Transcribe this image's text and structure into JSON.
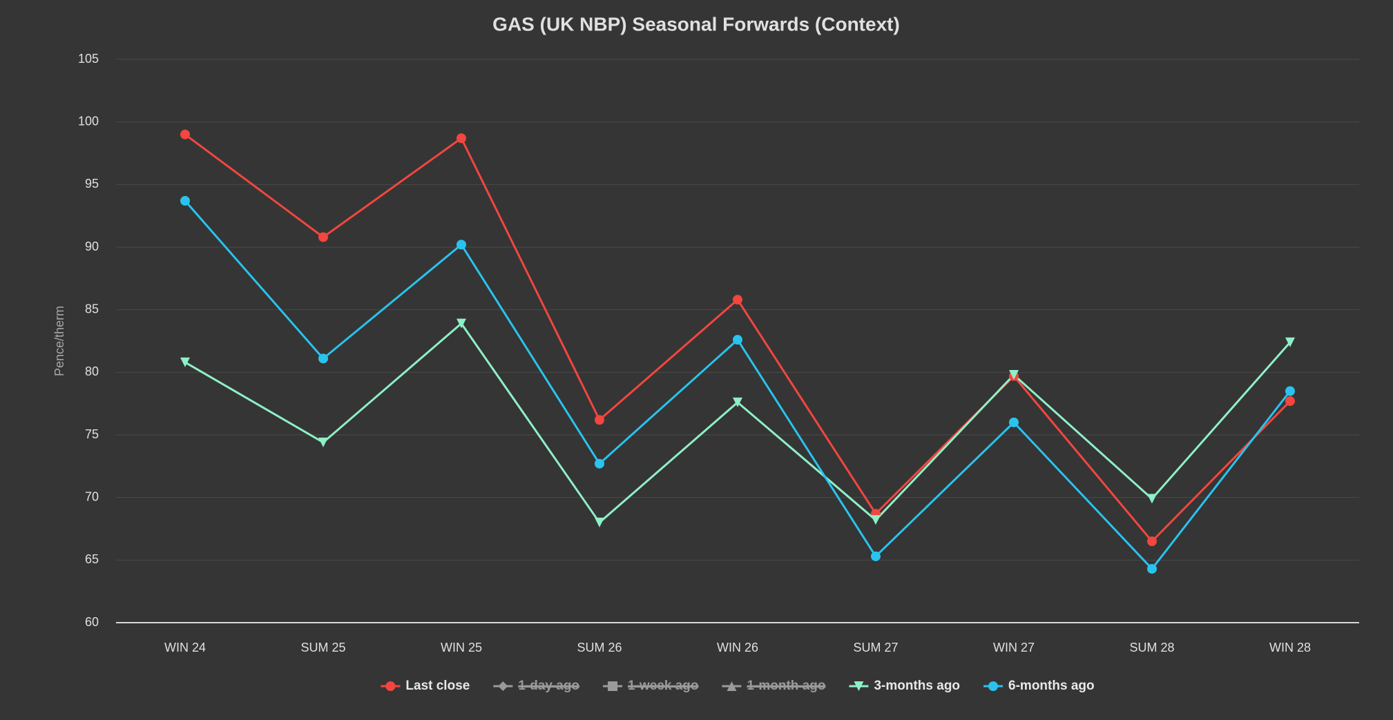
{
  "chart_data": {
    "type": "line",
    "title": "GAS (UK NBP) Seasonal Forwards (Context)",
    "y_label": "Pence/therm",
    "categories": [
      "WIN 24",
      "SUM 25",
      "WIN 25",
      "SUM 26",
      "WIN 26",
      "SUM 27",
      "WIN 27",
      "SUM 28",
      "WIN 28"
    ],
    "ylim": [
      60,
      105
    ],
    "yticks": [
      60,
      65,
      70,
      75,
      80,
      85,
      90,
      95,
      100,
      105
    ],
    "grid": true,
    "legend": "bottom",
    "series": [
      {
        "name": "Last close",
        "color": "#f2463f",
        "marker": "circle",
        "values": [
          99.0,
          90.8,
          98.7,
          76.2,
          85.8,
          68.7,
          79.7,
          66.5,
          77.7
        ]
      },
      {
        "name": "1-day ago",
        "color": "#9a9a9a",
        "marker": "diamond",
        "visible": false
      },
      {
        "name": "1-week ago",
        "color": "#9a9a9a",
        "marker": "square",
        "visible": false
      },
      {
        "name": "1-month ago",
        "color": "#9a9a9a",
        "marker": "triangle",
        "visible": false
      },
      {
        "name": "3-months ago",
        "color": "#8ef0c6",
        "marker": "triangle-down",
        "values": [
          80.8,
          74.4,
          83.9,
          68.0,
          77.6,
          68.2,
          79.8,
          69.9,
          82.4
        ]
      },
      {
        "name": "6-months ago",
        "color": "#29c3ee",
        "marker": "circle",
        "values": [
          93.7,
          81.1,
          90.2,
          72.7,
          82.6,
          65.3,
          76.0,
          64.3,
          78.5
        ]
      }
    ]
  }
}
